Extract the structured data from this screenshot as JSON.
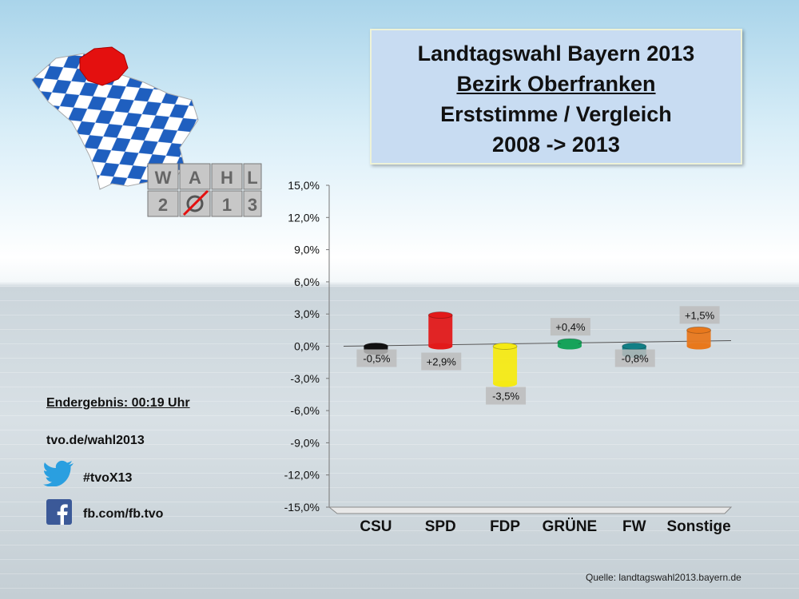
{
  "title": {
    "line1": "Landtagswahl Bayern 2013",
    "line2": "Bezirk Oberfranken",
    "line3": "Erststimme / Vergleich",
    "line4": "2008 -> 2013"
  },
  "logo": {
    "row1": [
      "W",
      "A",
      "H",
      "L"
    ],
    "row2": [
      "2",
      "",
      "1",
      "3"
    ]
  },
  "sidebar": {
    "endergebnis": "Endergebnis: 00:19 Uhr",
    "website": "tvo.de/wahl2013",
    "twitter": "#tvoX13",
    "facebook": "fb.com/fb.tvo"
  },
  "source": "Quelle: landtagswahl2013.bayern.de",
  "colors": {
    "title_bg": "#c8dcf2",
    "bavaria_blue": "#1f5fbf",
    "oberfranken_red": "#e4100f"
  },
  "chart_data": {
    "type": "bar",
    "categories": [
      "CSU",
      "SPD",
      "FDP",
      "GRÜNE",
      "FW",
      "Sonstige"
    ],
    "values": [
      -0.5,
      2.9,
      -3.5,
      0.4,
      -0.8,
      1.5
    ],
    "data_labels": [
      "-0,5%",
      "+2,9%",
      "-3,5%",
      "+0,4%",
      "-0,8%",
      "+1,5%"
    ],
    "colors": [
      "#111111",
      "#e21a1a",
      "#f5ea14",
      "#16a35a",
      "#127f86",
      "#e8781c"
    ],
    "yticks": [
      "15,0%",
      "12,0%",
      "9,0%",
      "6,0%",
      "3,0%",
      "0,0%",
      "-3,0%",
      "-6,0%",
      "-9,0%",
      "-12,0%",
      "-15,0%"
    ],
    "ylim": [
      -15,
      15
    ],
    "grid": false
  }
}
